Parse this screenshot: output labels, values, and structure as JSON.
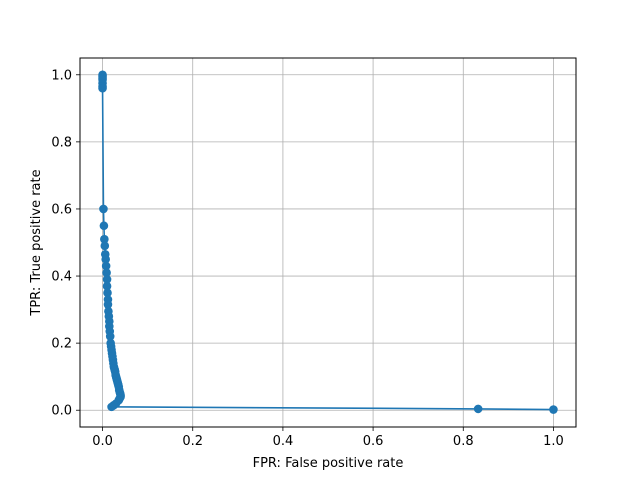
{
  "chart_data": {
    "type": "line",
    "title": "",
    "xlabel": "FPR: False positive rate",
    "ylabel": "TPR: True positive rate",
    "xlim": [
      -0.05,
      1.05
    ],
    "ylim": [
      -0.05,
      1.05
    ],
    "xticks": [
      "0.0",
      "0.2",
      "0.4",
      "0.6",
      "0.8",
      "1.0"
    ],
    "yticks": [
      "0.0",
      "0.2",
      "0.4",
      "0.6",
      "0.8",
      "1.0"
    ],
    "grid": true,
    "color": "#1f77b4",
    "markers": true,
    "series": [
      {
        "x": [
          0.0,
          0.0,
          0.0,
          0.0,
          0.0,
          0.0,
          0.0,
          0.002,
          0.003,
          0.004,
          0.005,
          0.006,
          0.007,
          0.008,
          0.009,
          0.01,
          0.01,
          0.011,
          0.012,
          0.012,
          0.013,
          0.014,
          0.015,
          0.015,
          0.016,
          0.017,
          0.018,
          0.019,
          0.02,
          0.021,
          0.022,
          0.023,
          0.024,
          0.025,
          0.026,
          0.027,
          0.028,
          0.029,
          0.03,
          0.031,
          0.032,
          0.033,
          0.034,
          0.035,
          0.036,
          0.037,
          0.038,
          0.039,
          0.04,
          0.04,
          0.038,
          0.036,
          0.03,
          0.025,
          0.02,
          0.833,
          1.0
        ],
        "y": [
          1.0,
          0.995,
          0.99,
          0.985,
          0.975,
          0.965,
          0.96,
          0.6,
          0.55,
          0.51,
          0.49,
          0.465,
          0.45,
          0.43,
          0.41,
          0.39,
          0.37,
          0.35,
          0.33,
          0.315,
          0.295,
          0.28,
          0.265,
          0.25,
          0.235,
          0.22,
          0.2,
          0.19,
          0.18,
          0.17,
          0.16,
          0.15,
          0.14,
          0.13,
          0.125,
          0.12,
          0.115,
          0.105,
          0.1,
          0.095,
          0.09,
          0.085,
          0.08,
          0.075,
          0.07,
          0.06,
          0.055,
          0.05,
          0.045,
          0.04,
          0.035,
          0.03,
          0.02,
          0.015,
          0.01,
          0.004,
          0.002
        ]
      }
    ]
  }
}
